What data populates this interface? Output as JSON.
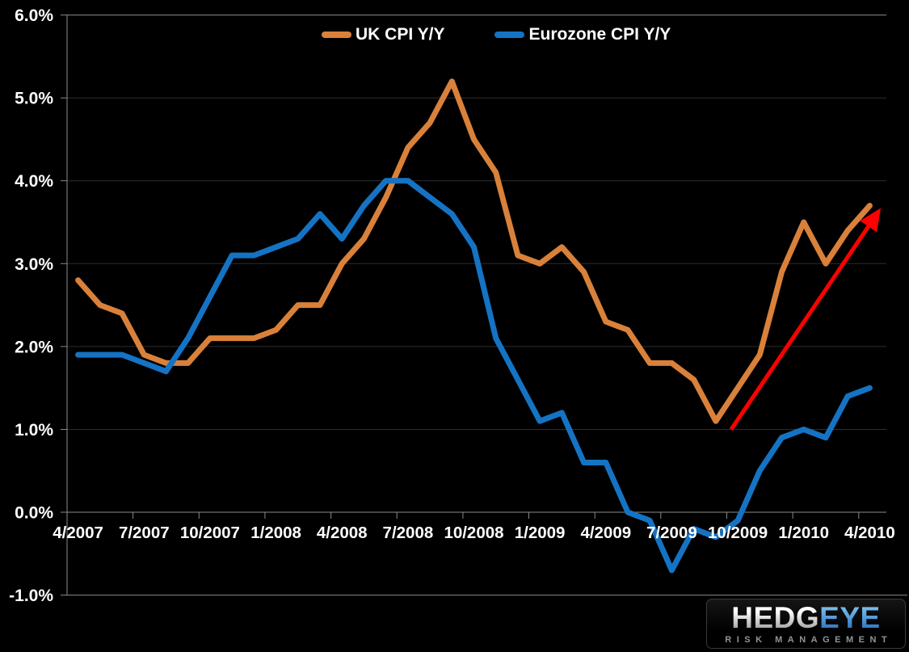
{
  "canvas": {
    "background": "#000000"
  },
  "chart_data": {
    "type": "line",
    "categories": [
      "4/2007",
      "5/2007",
      "6/2007",
      "7/2007",
      "8/2007",
      "9/2007",
      "10/2007",
      "11/2007",
      "12/2007",
      "1/2008",
      "2/2008",
      "3/2008",
      "4/2008",
      "5/2008",
      "6/2008",
      "7/2008",
      "8/2008",
      "9/2008",
      "10/2008",
      "11/2008",
      "12/2008",
      "1/2009",
      "2/2009",
      "3/2009",
      "4/2009",
      "5/2009",
      "6/2009",
      "7/2009",
      "8/2009",
      "9/2009",
      "10/2009",
      "11/2009",
      "12/2009",
      "1/2010",
      "2/2010",
      "3/2010",
      "4/2010"
    ],
    "series": [
      {
        "name": "UK CPI Y/Y",
        "color": "#D9813A",
        "values": [
          2.8,
          2.5,
          2.4,
          1.9,
          1.8,
          1.8,
          2.1,
          2.1,
          2.1,
          2.2,
          2.5,
          2.5,
          3.0,
          3.3,
          3.8,
          4.4,
          4.7,
          5.2,
          4.5,
          4.1,
          3.1,
          3.0,
          3.2,
          2.9,
          2.3,
          2.2,
          1.8,
          1.8,
          1.6,
          1.1,
          1.5,
          1.9,
          2.9,
          3.5,
          3.0,
          3.4,
          3.7
        ]
      },
      {
        "name": "Eurozone CPI Y/Y",
        "color": "#1573C4",
        "values": [
          1.9,
          1.9,
          1.9,
          1.8,
          1.7,
          2.1,
          2.6,
          3.1,
          3.1,
          3.2,
          3.3,
          3.6,
          3.3,
          3.7,
          4.0,
          4.0,
          3.8,
          3.6,
          3.2,
          2.1,
          1.6,
          1.1,
          1.2,
          0.6,
          0.6,
          0.0,
          -0.1,
          -0.7,
          -0.2,
          -0.3,
          -0.1,
          0.5,
          0.9,
          1.0,
          0.9,
          1.4,
          1.5
        ]
      }
    ],
    "x_tick_labels": [
      "4/2007",
      "7/2007",
      "10/2007",
      "1/2008",
      "4/2008",
      "7/2008",
      "10/2008",
      "1/2009",
      "4/2009",
      "7/2009",
      "10/2009",
      "1/2010",
      "4/2010"
    ],
    "y_tick_labels": [
      "6.0%",
      "5.0%",
      "4.0%",
      "3.0%",
      "2.0%",
      "1.0%",
      "0.0%",
      "-1.0%"
    ],
    "ylim": [
      -1.0,
      6.0
    ],
    "y_step": 1.0,
    "x_label_every": 3,
    "grid": "horizontal",
    "legend_position": "top-center",
    "background_color": "#000000",
    "axis_color": "#8A8A8A",
    "grid_color": "#2D2D2D",
    "label_color": "#FFFFFF",
    "annotation": {
      "type": "arrow",
      "color": "#FF0000",
      "start": {
        "month_index": 29.7,
        "value": 1.0
      },
      "end": {
        "month_index": 36.4,
        "value": 3.63
      }
    }
  },
  "logo": {
    "wordmark_left": "HEDG",
    "wordmark_right": "EYE",
    "tagline": "RISK MANAGEMENT"
  }
}
